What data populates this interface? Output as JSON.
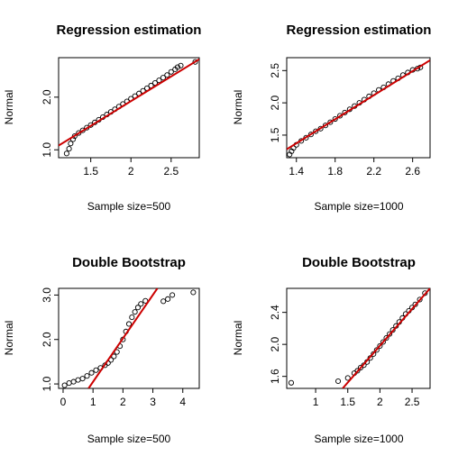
{
  "chart_data": [
    {
      "type": "scatter",
      "title": "Regression estimation",
      "xlabel": "Sample size=500",
      "ylabel": "Normal",
      "xlim": [
        1.1,
        2.85
      ],
      "ylim": [
        0.85,
        2.75
      ],
      "xticks": [
        1.5,
        2.0,
        2.5
      ],
      "yticks": [
        1.0,
        2.0
      ],
      "points_color": "#000000",
      "fit_line_color": "#cc0000",
      "fit_line": [
        [
          1.1,
          1.08
        ],
        [
          2.85,
          2.72
        ]
      ],
      "points": [
        [
          1.2,
          0.93
        ],
        [
          1.23,
          1.02
        ],
        [
          1.25,
          1.12
        ],
        [
          1.28,
          1.2
        ],
        [
          1.3,
          1.26
        ],
        [
          1.35,
          1.32
        ],
        [
          1.4,
          1.37
        ],
        [
          1.45,
          1.42
        ],
        [
          1.5,
          1.47
        ],
        [
          1.55,
          1.52
        ],
        [
          1.6,
          1.57
        ],
        [
          1.65,
          1.62
        ],
        [
          1.7,
          1.67
        ],
        [
          1.75,
          1.72
        ],
        [
          1.8,
          1.77
        ],
        [
          1.85,
          1.82
        ],
        [
          1.9,
          1.87
        ],
        [
          1.95,
          1.92
        ],
        [
          2.0,
          1.97
        ],
        [
          2.05,
          2.02
        ],
        [
          2.1,
          2.07
        ],
        [
          2.15,
          2.12
        ],
        [
          2.2,
          2.17
        ],
        [
          2.25,
          2.22
        ],
        [
          2.3,
          2.27
        ],
        [
          2.35,
          2.32
        ],
        [
          2.4,
          2.37
        ],
        [
          2.45,
          2.42
        ],
        [
          2.5,
          2.48
        ],
        [
          2.55,
          2.53
        ],
        [
          2.58,
          2.57
        ],
        [
          2.62,
          2.6
        ],
        [
          2.8,
          2.67
        ]
      ]
    },
    {
      "type": "scatter",
      "title": "Regression estimation",
      "xlabel": "Sample size=1000",
      "ylabel": "Normal",
      "xlim": [
        1.3,
        2.78
      ],
      "ylim": [
        1.15,
        2.7
      ],
      "xticks": [
        1.4,
        1.8,
        2.2,
        2.6
      ],
      "yticks": [
        1.5,
        2.0,
        2.5
      ],
      "points_color": "#000000",
      "fit_line_color": "#cc0000",
      "fit_line": [
        [
          1.3,
          1.28
        ],
        [
          2.78,
          2.66
        ]
      ],
      "points": [
        [
          1.33,
          1.2
        ],
        [
          1.35,
          1.25
        ],
        [
          1.37,
          1.3
        ],
        [
          1.4,
          1.35
        ],
        [
          1.45,
          1.41
        ],
        [
          1.5,
          1.46
        ],
        [
          1.55,
          1.51
        ],
        [
          1.6,
          1.56
        ],
        [
          1.65,
          1.6
        ],
        [
          1.7,
          1.65
        ],
        [
          1.75,
          1.7
        ],
        [
          1.8,
          1.75
        ],
        [
          1.85,
          1.8
        ],
        [
          1.9,
          1.85
        ],
        [
          1.95,
          1.9
        ],
        [
          2.0,
          1.95
        ],
        [
          2.05,
          2.0
        ],
        [
          2.1,
          2.05
        ],
        [
          2.15,
          2.1
        ],
        [
          2.2,
          2.15
        ],
        [
          2.25,
          2.2
        ],
        [
          2.3,
          2.24
        ],
        [
          2.35,
          2.29
        ],
        [
          2.4,
          2.34
        ],
        [
          2.45,
          2.38
        ],
        [
          2.5,
          2.43
        ],
        [
          2.55,
          2.47
        ],
        [
          2.6,
          2.51
        ],
        [
          2.65,
          2.53
        ],
        [
          2.68,
          2.55
        ]
      ]
    },
    {
      "type": "scatter",
      "title": "Double Bootstrap",
      "xlabel": "Sample size=500",
      "ylabel": "Normal",
      "xlim": [
        -0.15,
        4.55
      ],
      "ylim": [
        0.9,
        3.15
      ],
      "xticks": [
        0,
        1,
        2,
        3,
        4
      ],
      "yticks": [
        1.0,
        2.0,
        3.0
      ],
      "points_color": "#000000",
      "fit_line_color": "#cc0000",
      "fit_line": [
        [
          0.85,
          0.9
        ],
        [
          3.15,
          3.15
        ]
      ],
      "points": [
        [
          0.05,
          0.97
        ],
        [
          0.2,
          1.02
        ],
        [
          0.35,
          1.05
        ],
        [
          0.5,
          1.09
        ],
        [
          0.65,
          1.12
        ],
        [
          0.8,
          1.18
        ],
        [
          0.95,
          1.25
        ],
        [
          1.1,
          1.31
        ],
        [
          1.25,
          1.36
        ],
        [
          1.4,
          1.42
        ],
        [
          1.5,
          1.47
        ],
        [
          1.6,
          1.54
        ],
        [
          1.7,
          1.62
        ],
        [
          1.8,
          1.72
        ],
        [
          1.9,
          1.85
        ],
        [
          2.0,
          2.0
        ],
        [
          2.1,
          2.18
        ],
        [
          2.2,
          2.35
        ],
        [
          2.3,
          2.5
        ],
        [
          2.4,
          2.62
        ],
        [
          2.5,
          2.72
        ],
        [
          2.6,
          2.8
        ],
        [
          2.75,
          2.87
        ],
        [
          3.35,
          2.86
        ],
        [
          3.5,
          2.91
        ],
        [
          3.65,
          3.0
        ],
        [
          4.35,
          3.06
        ]
      ]
    },
    {
      "type": "scatter",
      "title": "Double Bootstrap",
      "xlabel": "Sample size=1000",
      "ylabel": "Normal",
      "xlim": [
        0.55,
        2.78
      ],
      "ylim": [
        1.45,
        2.7
      ],
      "xticks": [
        1.0,
        1.5,
        2.0,
        2.5
      ],
      "yticks": [
        1.6,
        2.0,
        2.4
      ],
      "points_color": "#000000",
      "fit_line_color": "#cc0000",
      "fit_line": [
        [
          1.42,
          1.45
        ],
        [
          2.78,
          2.7
        ]
      ],
      "points": [
        [
          0.62,
          1.52
        ],
        [
          1.35,
          1.54
        ],
        [
          1.5,
          1.58
        ],
        [
          1.6,
          1.64
        ],
        [
          1.65,
          1.67
        ],
        [
          1.7,
          1.71
        ],
        [
          1.75,
          1.74
        ],
        [
          1.8,
          1.78
        ],
        [
          1.85,
          1.83
        ],
        [
          1.9,
          1.88
        ],
        [
          1.95,
          1.93
        ],
        [
          2.0,
          1.98
        ],
        [
          2.05,
          2.03
        ],
        [
          2.1,
          2.08
        ],
        [
          2.15,
          2.13
        ],
        [
          2.2,
          2.18
        ],
        [
          2.25,
          2.23
        ],
        [
          2.3,
          2.28
        ],
        [
          2.35,
          2.33
        ],
        [
          2.4,
          2.38
        ],
        [
          2.45,
          2.42
        ],
        [
          2.5,
          2.46
        ],
        [
          2.55,
          2.5
        ],
        [
          2.62,
          2.56
        ],
        [
          2.7,
          2.64
        ]
      ]
    }
  ]
}
